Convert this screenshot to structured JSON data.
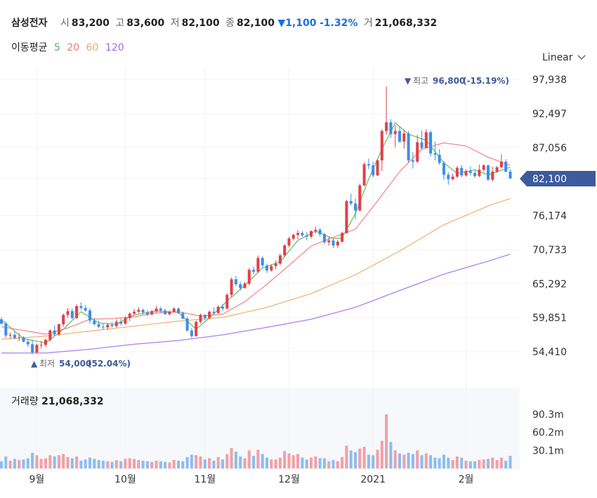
{
  "header": {
    "name": "삼성전자",
    "open_label": "시",
    "open": "83,200",
    "high_label": "고",
    "high": "83,600",
    "low_label": "저",
    "low": "82,100",
    "close_label": "종",
    "close": "82,100",
    "change": "▼1,100",
    "change_pct": "-1.32%",
    "volume_label": "거",
    "volume": "21,068,332"
  },
  "ma_legend": {
    "label": "이동평균",
    "items": [
      {
        "period": "5",
        "color": "#4cbb4c"
      },
      {
        "period": "20",
        "color": "#f07878"
      },
      {
        "period": "60",
        "color": "#f0a860"
      },
      {
        "period": "120",
        "color": "#9b6cf0"
      }
    ]
  },
  "scale_selector": {
    "label": "Linear"
  },
  "annotations": {
    "high": {
      "marker": "▼",
      "label": "최고",
      "value": "96,800",
      "pct": "(-15.19%)"
    },
    "low": {
      "marker": "▲",
      "label": "최저",
      "value": "54,000",
      "pct": "(52.04%)"
    }
  },
  "price_tag": "82,100",
  "volume_panel": {
    "label": "거래량",
    "value": "21,068,332"
  },
  "chart_data": {
    "type": "candlestick",
    "price_axis": {
      "ticks": [
        "97,938",
        "92,497",
        "87,056",
        "82,100",
        "76,174",
        "70,733",
        "65,292",
        "59,851",
        "54,410"
      ],
      "tick_values": [
        97938,
        92497,
        87056,
        82100,
        76174,
        70733,
        65292,
        59851,
        54410
      ]
    },
    "x_axis": {
      "ticks": [
        "9월",
        "10월",
        "11월",
        "12월",
        "2021",
        "2월"
      ]
    },
    "volume_axis": {
      "ticks": [
        "90.3m",
        "60.2m",
        "30.1m"
      ],
      "tick_values": [
        90.3,
        60.2,
        30.1
      ]
    },
    "colors": {
      "up": "#e0404a",
      "down": "#3c8ee8",
      "up_vol": "#f0a0a6",
      "down_vol": "#8cbdf0",
      "last_tag": "#3d5a9c"
    },
    "candles": [
      [
        59600,
        59900,
        58700,
        58900,
        12
      ],
      [
        58900,
        59200,
        56600,
        57000,
        20
      ],
      [
        57000,
        57500,
        56500,
        57100,
        13
      ],
      [
        57100,
        57700,
        56400,
        56600,
        16
      ],
      [
        56600,
        57400,
        56100,
        56700,
        14
      ],
      [
        56700,
        56900,
        55900,
        56000,
        15
      ],
      [
        56000,
        56400,
        55200,
        55600,
        17
      ],
      [
        55600,
        56300,
        54000,
        54300,
        26
      ],
      [
        54300,
        55700,
        54100,
        55500,
        22
      ],
      [
        55500,
        56100,
        54900,
        55500,
        16
      ],
      [
        55500,
        56500,
        55100,
        56300,
        17
      ],
      [
        56300,
        58000,
        56000,
        57800,
        22
      ],
      [
        57800,
        58600,
        57000,
        57200,
        20
      ],
      [
        57200,
        58900,
        56900,
        58800,
        22
      ],
      [
        58800,
        60500,
        58400,
        60300,
        24
      ],
      [
        60300,
        61400,
        59800,
        60900,
        19
      ],
      [
        60900,
        61300,
        59600,
        59800,
        17
      ],
      [
        59800,
        62000,
        59600,
        61700,
        20
      ],
      [
        61700,
        62300,
        61100,
        61400,
        13
      ],
      [
        61400,
        61900,
        60800,
        61000,
        15
      ],
      [
        61000,
        61400,
        58900,
        59400,
        18
      ],
      [
        59400,
        59800,
        58600,
        58800,
        16
      ],
      [
        58800,
        59400,
        58200,
        58400,
        14
      ],
      [
        58400,
        58900,
        57900,
        58300,
        13
      ],
      [
        58300,
        59000,
        57900,
        58700,
        12
      ],
      [
        58700,
        59100,
        58300,
        58500,
        11
      ],
      [
        58500,
        59600,
        58300,
        59200,
        14
      ],
      [
        59200,
        59700,
        58600,
        58900,
        12
      ],
      [
        58900,
        60100,
        58700,
        59800,
        16
      ],
      [
        59800,
        60700,
        59300,
        60500,
        17
      ],
      [
        60500,
        61300,
        60200,
        60800,
        16
      ],
      [
        60800,
        61500,
        60600,
        61100,
        14
      ],
      [
        61100,
        61300,
        60400,
        60700,
        13
      ],
      [
        60700,
        61100,
        60100,
        60400,
        12
      ],
      [
        60400,
        61100,
        60200,
        60900,
        11
      ],
      [
        60900,
        61700,
        60600,
        61300,
        13
      ],
      [
        61300,
        61600,
        60700,
        61000,
        12
      ],
      [
        61000,
        61300,
        60300,
        60400,
        11
      ],
      [
        60400,
        61000,
        60200,
        60800,
        10
      ],
      [
        60800,
        61500,
        60700,
        61300,
        14
      ],
      [
        61300,
        61500,
        60400,
        60600,
        13
      ],
      [
        60600,
        60800,
        59600,
        59700,
        12
      ],
      [
        59700,
        60000,
        57600,
        57800,
        19
      ],
      [
        57800,
        58200,
        56600,
        56900,
        23
      ],
      [
        56900,
        59400,
        56800,
        59200,
        22
      ],
      [
        59200,
        60500,
        58900,
        60300,
        20
      ],
      [
        60300,
        60400,
        59400,
        59800,
        15
      ],
      [
        59800,
        61000,
        59600,
        60800,
        17
      ],
      [
        60800,
        61500,
        60300,
        60600,
        13
      ],
      [
        60600,
        61800,
        60500,
        61600,
        19
      ],
      [
        61600,
        62000,
        60900,
        61300,
        15
      ],
      [
        61300,
        63800,
        61200,
        63500,
        24
      ],
      [
        63500,
        66300,
        63200,
        66000,
        34
      ],
      [
        66000,
        66500,
        64900,
        65200,
        28
      ],
      [
        65200,
        65600,
        64200,
        64600,
        20
      ],
      [
        64600,
        65600,
        64500,
        65300,
        17
      ],
      [
        65300,
        67800,
        65000,
        67500,
        30
      ],
      [
        67500,
        68000,
        66800,
        67200,
        21
      ],
      [
        67200,
        69800,
        67000,
        69400,
        31
      ],
      [
        69400,
        69700,
        67900,
        68200,
        24
      ],
      [
        68200,
        68500,
        67000,
        67400,
        18
      ],
      [
        67400,
        68400,
        67200,
        68100,
        15
      ],
      [
        68100,
        69000,
        67600,
        68500,
        15
      ],
      [
        68500,
        70100,
        68200,
        69800,
        18
      ],
      [
        69800,
        71600,
        69500,
        71400,
        29
      ],
      [
        71400,
        72800,
        71100,
        72500,
        25
      ],
      [
        72500,
        73300,
        72200,
        73100,
        22
      ],
      [
        73100,
        73900,
        72400,
        73400,
        24
      ],
      [
        73400,
        73700,
        72800,
        73000,
        18
      ],
      [
        73000,
        73500,
        72200,
        72800,
        15
      ],
      [
        72800,
        73800,
        72500,
        73700,
        18
      ],
      [
        73700,
        74400,
        73300,
        73900,
        20
      ],
      [
        73900,
        74200,
        72800,
        73200,
        17
      ],
      [
        73200,
        73400,
        71600,
        71900,
        17
      ],
      [
        71900,
        72800,
        71400,
        72200,
        12
      ],
      [
        72200,
        72500,
        71000,
        71400,
        14
      ],
      [
        71400,
        72300,
        71000,
        72000,
        12
      ],
      [
        72000,
        73600,
        71800,
        73400,
        19
      ],
      [
        73400,
        78700,
        73300,
        78500,
        38
      ],
      [
        78500,
        79700,
        77800,
        78100,
        30
      ],
      [
        78100,
        78900,
        75600,
        77000,
        27
      ],
      [
        77000,
        81300,
        76800,
        81000,
        33
      ],
      [
        81000,
        84700,
        80900,
        84400,
        36
      ],
      [
        84400,
        85300,
        83600,
        84200,
        23
      ],
      [
        84200,
        84800,
        82300,
        82600,
        22
      ],
      [
        82600,
        85200,
        82500,
        85000,
        31
      ],
      [
        85000,
        90000,
        83300,
        89700,
        46
      ],
      [
        89700,
        96800,
        89100,
        91100,
        90
      ],
      [
        91100,
        91600,
        88600,
        89200,
        44
      ],
      [
        89200,
        90600,
        87100,
        89700,
        30
      ],
      [
        89700,
        90400,
        87800,
        88000,
        25
      ],
      [
        88000,
        89900,
        86900,
        89300,
        23
      ],
      [
        89300,
        89700,
        84700,
        85000,
        26
      ],
      [
        85000,
        86300,
        83700,
        84800,
        24
      ],
      [
        84800,
        89100,
        84600,
        87900,
        30
      ],
      [
        87900,
        89800,
        86700,
        87000,
        22
      ],
      [
        87000,
        90000,
        86900,
        89500,
        25
      ],
      [
        89500,
        89800,
        85600,
        86100,
        22
      ],
      [
        86100,
        88000,
        85000,
        85900,
        18
      ],
      [
        85900,
        86800,
        84300,
        84600,
        17
      ],
      [
        84600,
        84900,
        81900,
        82700,
        23
      ],
      [
        82700,
        83100,
        81100,
        82000,
        18
      ],
      [
        82000,
        82900,
        81800,
        82400,
        14
      ],
      [
        82400,
        84100,
        82200,
        83800,
        20
      ],
      [
        83800,
        84300,
        82300,
        82600,
        18
      ],
      [
        82600,
        83600,
        82400,
        83300,
        13
      ],
      [
        83300,
        84000,
        82600,
        83000,
        12
      ],
      [
        83000,
        83400,
        82200,
        82500,
        12
      ],
      [
        82500,
        84300,
        82300,
        83500,
        14
      ],
      [
        83500,
        84400,
        83200,
        84200,
        15
      ],
      [
        84200,
        84300,
        81700,
        81900,
        16
      ],
      [
        81900,
        84000,
        81600,
        83200,
        18
      ],
      [
        83200,
        84100,
        83000,
        83900,
        14
      ],
      [
        83900,
        86000,
        83800,
        84800,
        18
      ],
      [
        84800,
        85200,
        83100,
        83200,
        13
      ],
      [
        83200,
        83600,
        82100,
        82100,
        21
      ]
    ],
    "moving_averages": {
      "ma5": [
        [
          0,
          59500
        ],
        [
          5,
          56500
        ],
        [
          10,
          55800
        ],
        [
          14,
          58000
        ],
        [
          18,
          60800
        ],
        [
          22,
          59000
        ],
        [
          26,
          58800
        ],
        [
          30,
          60300
        ],
        [
          35,
          60900
        ],
        [
          40,
          60700
        ],
        [
          44,
          58000
        ],
        [
          47,
          59800
        ],
        [
          51,
          62500
        ],
        [
          55,
          65000
        ],
        [
          59,
          67800
        ],
        [
          63,
          68800
        ],
        [
          67,
          72200
        ],
        [
          71,
          73700
        ],
        [
          75,
          72500
        ],
        [
          77,
          72600
        ],
        [
          80,
          76500
        ],
        [
          83,
          82000
        ],
        [
          86,
          86800
        ],
        [
          89,
          91000
        ],
        [
          92,
          89200
        ],
        [
          96,
          88200
        ],
        [
          100,
          84600
        ],
        [
          103,
          82900
        ],
        [
          107,
          83500
        ],
        [
          110,
          82700
        ],
        [
          115,
          83900
        ]
      ],
      "ma20": [
        [
          0,
          58400
        ],
        [
          5,
          57800
        ],
        [
          10,
          57200
        ],
        [
          15,
          58200
        ],
        [
          20,
          59600
        ],
        [
          25,
          59700
        ],
        [
          30,
          60000
        ],
        [
          35,
          60600
        ],
        [
          40,
          60800
        ],
        [
          45,
          60100
        ],
        [
          50,
          60400
        ],
        [
          55,
          62400
        ],
        [
          60,
          65200
        ],
        [
          65,
          68200
        ],
        [
          70,
          71300
        ],
        [
          75,
          72700
        ],
        [
          80,
          74000
        ],
        [
          85,
          78500
        ],
        [
          90,
          83200
        ],
        [
          95,
          86800
        ],
        [
          100,
          87800
        ],
        [
          105,
          87300
        ],
        [
          110,
          85500
        ],
        [
          115,
          84200
        ]
      ],
      "ma60": [
        [
          0,
          56400
        ],
        [
          10,
          56900
        ],
        [
          20,
          57700
        ],
        [
          30,
          58500
        ],
        [
          40,
          59300
        ],
        [
          50,
          59900
        ],
        [
          60,
          61500
        ],
        [
          70,
          63700
        ],
        [
          80,
          66700
        ],
        [
          90,
          70500
        ],
        [
          100,
          74700
        ],
        [
          110,
          77700
        ],
        [
          115,
          78900
        ]
      ],
      "ma120": [
        [
          0,
          54200
        ],
        [
          10,
          54200
        ],
        [
          20,
          54800
        ],
        [
          30,
          55600
        ],
        [
          40,
          56200
        ],
        [
          50,
          57100
        ],
        [
          60,
          58300
        ],
        [
          70,
          59600
        ],
        [
          80,
          61500
        ],
        [
          90,
          64200
        ],
        [
          100,
          66800
        ],
        [
          110,
          68900
        ],
        [
          115,
          70000
        ]
      ]
    }
  }
}
